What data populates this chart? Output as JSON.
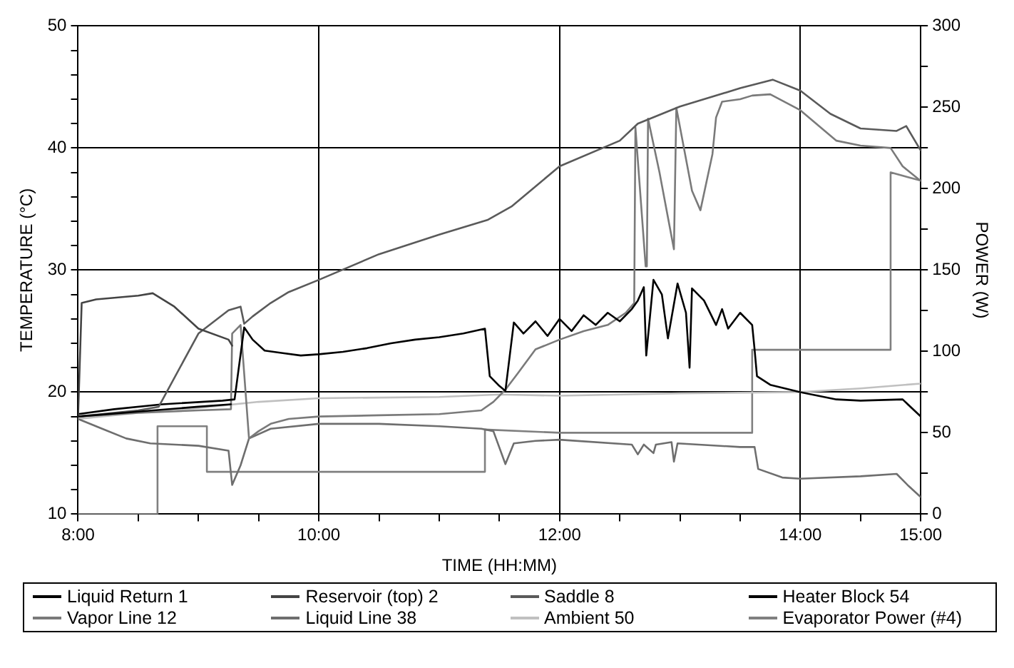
{
  "chart_data": {
    "type": "line",
    "xlabel": "TIME (HH:MM)",
    "ylabel": "TEMPERATURE (°C)",
    "y2label": "POWER (W)",
    "xlim": [
      8,
      15
    ],
    "xticks": [
      {
        "value": 8,
        "label": "8:00"
      },
      {
        "value": 8.5,
        "label": null
      },
      {
        "value": 9,
        "label": null
      },
      {
        "value": 9.5,
        "label": null
      },
      {
        "value": 10,
        "label": "10:00"
      },
      {
        "value": 10.5,
        "label": null
      },
      {
        "value": 11,
        "label": null
      },
      {
        "value": 11.5,
        "label": null
      },
      {
        "value": 12,
        "label": "12:00"
      },
      {
        "value": 12.5,
        "label": null
      },
      {
        "value": 13,
        "label": null
      },
      {
        "value": 13.5,
        "label": null
      },
      {
        "value": 14,
        "label": "14:00"
      },
      {
        "value": 14.5,
        "label": null
      },
      {
        "value": 15,
        "label": "15:00"
      }
    ],
    "ylim": [
      10,
      50
    ],
    "yticks": [
      10,
      {
        "value": 12,
        "label": null
      },
      {
        "value": 14,
        "label": null
      },
      {
        "value": 16,
        "label": null
      },
      {
        "value": 18,
        "label": null
      },
      20,
      {
        "value": 22,
        "label": null
      },
      {
        "value": 24,
        "label": null
      },
      {
        "value": 26,
        "label": null
      },
      {
        "value": 28,
        "label": null
      },
      30,
      {
        "value": 32,
        "label": null
      },
      {
        "value": 34,
        "label": null
      },
      {
        "value": 36,
        "label": null
      },
      {
        "value": 38,
        "label": null
      },
      40,
      {
        "value": 42,
        "label": null
      },
      {
        "value": 44,
        "label": null
      },
      {
        "value": 46,
        "label": null
      },
      {
        "value": 48,
        "label": null
      },
      50
    ],
    "y2lim": [
      0,
      300
    ],
    "y2ticks": [
      0,
      {
        "value": 25,
        "label": null
      },
      50,
      {
        "value": 75,
        "label": null
      },
      100,
      {
        "value": 125,
        "label": null
      },
      150,
      {
        "value": 175,
        "label": null
      },
      200,
      {
        "value": 225,
        "label": null
      },
      250,
      {
        "value": 275,
        "label": null
      },
      300
    ],
    "grid": true,
    "legend": "bottom",
    "marker": "none",
    "series": [
      {
        "name": "Liquid Return 1",
        "color": "#000000",
        "x": [
          8,
          8.5,
          9,
          9.27
        ],
        "values": [
          18,
          18.4,
          18.8,
          19
        ]
      },
      {
        "name": "Reservoir (top) 2",
        "color": "#444444",
        "x": [
          8,
          8.03,
          8.15,
          8.5,
          8.62,
          8.8,
          9,
          9.25,
          9.28
        ],
        "values": [
          18,
          27.3,
          27.6,
          27.9,
          28.1,
          27,
          25.2,
          24.3,
          23.8
        ]
      },
      {
        "name": "Saddle 8",
        "color": "#5a5a5a",
        "x": [
          8,
          8.5,
          8.67,
          9,
          9.25,
          9.35,
          9.38,
          9.45,
          9.6,
          9.75,
          10,
          10.5,
          11,
          11.4,
          11.6,
          12,
          12.5,
          12.65,
          13,
          13.5,
          13.77,
          14,
          14.25,
          14.5,
          14.8,
          14.88,
          15
        ],
        "values": [
          18,
          18.5,
          18.8,
          24.8,
          26.7,
          27,
          25.6,
          26.2,
          27.3,
          28.2,
          29.2,
          31.3,
          32.9,
          34.1,
          35.2,
          38.5,
          40.6,
          42,
          43.4,
          44.9,
          45.6,
          44.7,
          42.8,
          41.6,
          41.4,
          41.8,
          39.8
        ]
      },
      {
        "name": "Heater Block 54",
        "color": "#000000",
        "x": [
          8,
          8.3,
          8.7,
          9.2,
          9.3,
          9.38,
          9.45,
          9.55,
          9.7,
          9.85,
          10,
          10.2,
          10.4,
          10.6,
          10.8,
          11,
          11.2,
          11.38,
          11.42,
          11.5,
          11.55,
          11.62,
          11.7,
          11.8,
          11.9,
          12,
          12.1,
          12.2,
          12.3,
          12.4,
          12.5,
          12.6,
          12.65,
          12.7,
          12.72,
          12.78,
          12.85,
          12.9,
          12.98,
          13.05,
          13.08,
          13.1,
          13.2,
          13.3,
          13.35,
          13.4,
          13.5,
          13.6,
          13.62,
          13.64,
          13.75,
          14,
          14.3,
          14.5,
          14.85,
          15
        ],
        "values": [
          18.2,
          18.6,
          19,
          19.3,
          19.4,
          25.3,
          24.3,
          23.4,
          23.2,
          23,
          23.1,
          23.3,
          23.6,
          24,
          24.3,
          24.5,
          24.8,
          25.2,
          21.3,
          20.5,
          20.1,
          25.7,
          24.8,
          25.8,
          24.6,
          26,
          25,
          26.3,
          25.5,
          26.5,
          25.8,
          26.8,
          27.5,
          28.6,
          23,
          29.2,
          28,
          24.4,
          28.9,
          26.5,
          22,
          28.5,
          27.5,
          25.5,
          26.8,
          25.2,
          26.5,
          25.5,
          23.5,
          21.3,
          20.6,
          20,
          19.4,
          19.3,
          19.4,
          18
        ]
      },
      {
        "name": "Vapor Line 12",
        "color": "#7a7a7a",
        "x": [
          8,
          8.5,
          9,
          9.27,
          9.28,
          9.35,
          9.42,
          9.5,
          9.6,
          9.75,
          10,
          10.5,
          11,
          11.35,
          11.45,
          11.55,
          11.65,
          11.8,
          12,
          12.2,
          12.4,
          12.55,
          12.62,
          12.63,
          12.68,
          12.715,
          12.725,
          12.735,
          12.83,
          12.95,
          12.97,
          13.1,
          13.17,
          13.27,
          13.3,
          13.35,
          13.5,
          13.6,
          13.75,
          14,
          14.3,
          14.5,
          14.75,
          14.85,
          15
        ],
        "values": [
          18,
          18.3,
          18.5,
          18.6,
          24.8,
          25.5,
          16.2,
          16.8,
          17.4,
          17.8,
          18,
          18.1,
          18.2,
          18.5,
          19.2,
          20.2,
          21.5,
          23.5,
          24.3,
          25,
          25.5,
          26.5,
          27.3,
          41.7,
          35,
          30.3,
          30.3,
          42.4,
          38,
          31.7,
          43.3,
          36.5,
          34.9,
          39.5,
          42.5,
          43.8,
          44,
          44.3,
          44.4,
          43.1,
          40.6,
          40.2,
          40,
          38.5,
          37.3
        ]
      },
      {
        "name": "Liquid Line 38",
        "color": "#6e6e6e",
        "x": [
          8,
          8.2,
          8.4,
          8.6,
          9,
          9.25,
          9.28,
          9.35,
          9.42,
          9.6,
          10,
          10.5,
          11,
          11.35,
          11.45,
          11.55,
          11.62,
          11.8,
          12,
          12.6,
          12.65,
          12.7,
          12.78,
          12.8,
          12.93,
          12.95,
          12.98,
          13.5,
          13.62,
          13.65,
          13.85,
          14,
          14.5,
          14.8,
          14.9,
          15
        ],
        "values": [
          17.8,
          17,
          16.2,
          15.8,
          15.6,
          15.2,
          12.4,
          14,
          16.2,
          17,
          17.4,
          17.4,
          17.2,
          17,
          16.8,
          14.1,
          15.8,
          16,
          16.1,
          15.7,
          14.9,
          15.7,
          15,
          15.7,
          15.9,
          14.3,
          15.8,
          15.5,
          15.5,
          13.7,
          13,
          12.9,
          13.1,
          13.3,
          12.3,
          11.4
        ]
      },
      {
        "name": "Ambient 50",
        "color": "#c0c0c0",
        "x": [
          8,
          8.5,
          9,
          9.5,
          10,
          11,
          11.5,
          12,
          13,
          14,
          14.5,
          15
        ],
        "values": [
          17.8,
          18.3,
          18.7,
          19.2,
          19.5,
          19.6,
          19.8,
          19.7,
          19.9,
          20,
          20.3,
          20.7
        ]
      },
      {
        "name": "Evaporator Power (#4)",
        "color": "#808080",
        "axis": "y2",
        "x": [
          8,
          8.66,
          8.66,
          9.07,
          9.07,
          11.38,
          11.38,
          12,
          13.6,
          13.6,
          14.75,
          14.75,
          15
        ],
        "values": [
          0,
          0,
          54,
          54,
          26,
          26,
          52,
          50,
          50,
          101,
          101,
          210,
          205
        ]
      }
    ]
  }
}
